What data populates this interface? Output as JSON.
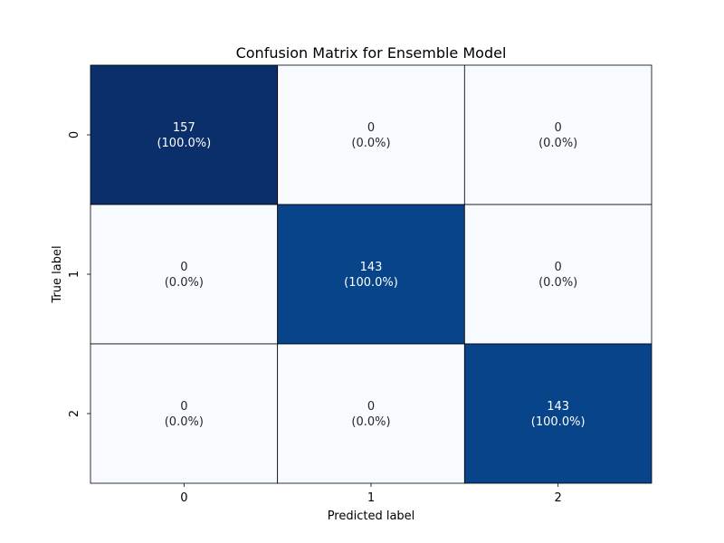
{
  "chart_data": {
    "type": "heatmap",
    "title": "Confusion Matrix for Ensemble Model",
    "xlabel": "Predicted label",
    "ylabel": "True label",
    "x_categories": [
      "0",
      "1",
      "2"
    ],
    "y_categories": [
      "0",
      "1",
      "2"
    ],
    "values": [
      [
        157,
        0,
        0
      ],
      [
        0,
        143,
        0
      ],
      [
        0,
        0,
        143
      ]
    ],
    "annotations": [
      [
        "157\n(100.0%)",
        "0\n(0.0%)",
        "0\n(0.0%)"
      ],
      [
        "0\n(0.0%)",
        "143\n(100.0%)",
        "0\n(0.0%)"
      ],
      [
        "0\n(0.0%)",
        "0\n(0.0%)",
        "143\n(100.0%)"
      ]
    ],
    "colormap": "Blues",
    "colorbar": false,
    "grid": false,
    "cell_border_color": "#000000",
    "colors": {
      "low": "#f7fbff",
      "mid": "#08468e",
      "high": "#0a2f6a",
      "text_dark": "#262626",
      "text_light": "#ffffff"
    }
  }
}
